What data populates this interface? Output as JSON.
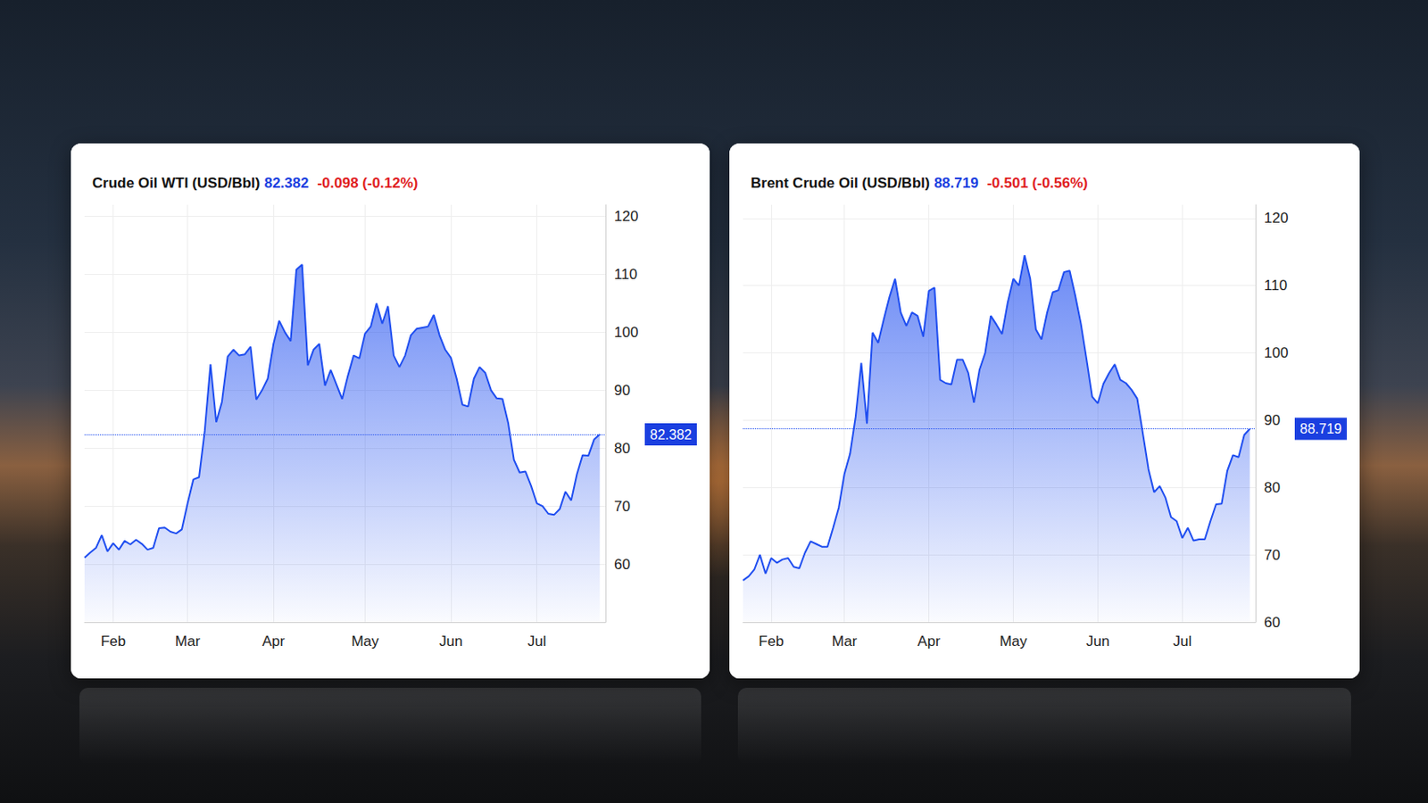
{
  "chart_data": [
    {
      "type": "line",
      "title": "Crude Oil WTI (USD/Bbl)",
      "subtitle": "-0.098 (-0.12%)",
      "color": "#1f4ef0",
      "grid": true,
      "ylim": [
        50,
        122
      ],
      "yticks": [
        60,
        70,
        80,
        90,
        100,
        110,
        120
      ],
      "categories": [
        null,
        null,
        null,
        null,
        null,
        "Feb",
        null,
        null,
        null,
        null,
        null,
        null,
        null,
        null,
        null,
        null,
        null,
        null,
        "Mar",
        null,
        null,
        null,
        null,
        null,
        null,
        null,
        null,
        null,
        null,
        null,
        null,
        null,
        null,
        "Apr",
        null,
        null,
        null,
        null,
        null,
        null,
        null,
        null,
        null,
        null,
        null,
        null,
        null,
        null,
        null,
        "May",
        null,
        null,
        null,
        null,
        null,
        null,
        null,
        null,
        null,
        null,
        null,
        null,
        null,
        null,
        "Jun",
        null,
        null,
        null,
        null,
        null,
        null,
        null,
        null,
        null,
        null,
        null,
        null,
        null,
        null,
        "Jul",
        null,
        null,
        null,
        null,
        null,
        null,
        null,
        null,
        null,
        null,
        null,
        null
      ],
      "values": [
        61.1,
        62.0,
        62.8,
        65.0,
        62.2,
        63.6,
        62.5,
        64.0,
        63.4,
        64.2,
        63.5,
        62.5,
        62.8,
        66.2,
        66.3,
        65.6,
        65.3,
        66.0,
        70.5,
        74.6,
        75.0,
        83.0,
        94.5,
        84.5,
        88.0,
        95.8,
        97.0,
        96.0,
        96.2,
        97.5,
        88.4,
        90.0,
        92.0,
        98.0,
        102.0,
        100.0,
        98.5,
        110.8,
        111.7,
        94.3,
        97.0,
        98.0,
        90.8,
        93.5,
        91.0,
        88.5,
        92.5,
        96.0,
        95.5,
        99.8,
        101.0,
        105.0,
        101.5,
        104.5,
        96.0,
        94.0,
        96.0,
        99.5,
        100.6,
        100.8,
        101.0,
        103.0,
        99.5,
        97.0,
        95.6,
        92.0,
        87.5,
        87.2,
        92.0,
        94.0,
        93.0,
        90.0,
        88.6,
        88.5,
        84.3,
        78.0,
        75.8,
        76.0,
        73.5,
        70.5,
        70.0,
        68.7,
        68.5,
        69.5,
        72.5,
        71.0,
        75.5,
        78.8,
        78.7,
        81.5,
        82.382,
        null
      ]
    },
    {
      "type": "line",
      "title": "Brent Crude Oil (USD/Bbl)",
      "subtitle": "-0.501 (-0.56%)",
      "color": "#1f4ef0",
      "grid": true,
      "ylim": [
        60,
        122
      ],
      "yticks": [
        60,
        70,
        80,
        90,
        100,
        110,
        120
      ],
      "categories": [
        null,
        null,
        null,
        null,
        null,
        "Feb",
        null,
        null,
        null,
        null,
        null,
        null,
        null,
        null,
        null,
        null,
        null,
        null,
        "Mar",
        null,
        null,
        null,
        null,
        null,
        null,
        null,
        null,
        null,
        null,
        null,
        null,
        null,
        null,
        "Apr",
        null,
        null,
        null,
        null,
        null,
        null,
        null,
        null,
        null,
        null,
        null,
        null,
        null,
        null,
        "May",
        null,
        null,
        null,
        null,
        null,
        null,
        null,
        null,
        null,
        null,
        null,
        null,
        null,
        null,
        "Jun",
        null,
        null,
        null,
        null,
        null,
        null,
        null,
        null,
        null,
        null,
        null,
        null,
        null,
        null,
        "Jul",
        null,
        null,
        null,
        null,
        null,
        null,
        null,
        null,
        null,
        null,
        null,
        null,
        null
      ],
      "values": [
        66.2,
        66.8,
        67.8,
        70.0,
        67.2,
        69.5,
        68.8,
        69.3,
        69.5,
        68.2,
        68.0,
        70.3,
        72.0,
        71.6,
        71.2,
        71.2,
        74.0,
        77.0,
        82.0,
        85.0,
        90.5,
        98.5,
        89.5,
        103.0,
        101.5,
        105.0,
        108.3,
        111.0,
        106.0,
        104.0,
        106.0,
        105.5,
        102.4,
        109.2,
        109.7,
        96.0,
        95.5,
        95.3,
        99.0,
        99.0,
        97.0,
        92.6,
        97.5,
        100.0,
        105.5,
        104.2,
        102.8,
        107.5,
        111.0,
        110.0,
        114.5,
        111.0,
        103.5,
        102.0,
        106.0,
        109.0,
        109.3,
        112.0,
        112.2,
        108.5,
        104.3,
        99.0,
        93.5,
        92.5,
        95.4,
        97.0,
        98.3,
        96.0,
        95.5,
        94.5,
        93.2,
        88.0,
        82.7,
        79.3,
        80.2,
        78.5,
        75.6,
        75.0,
        72.5,
        74.0,
        72.1,
        72.3,
        72.3,
        75.0,
        77.5,
        77.6,
        82.5,
        84.8,
        84.5,
        87.8,
        88.719,
        null
      ]
    }
  ]
}
